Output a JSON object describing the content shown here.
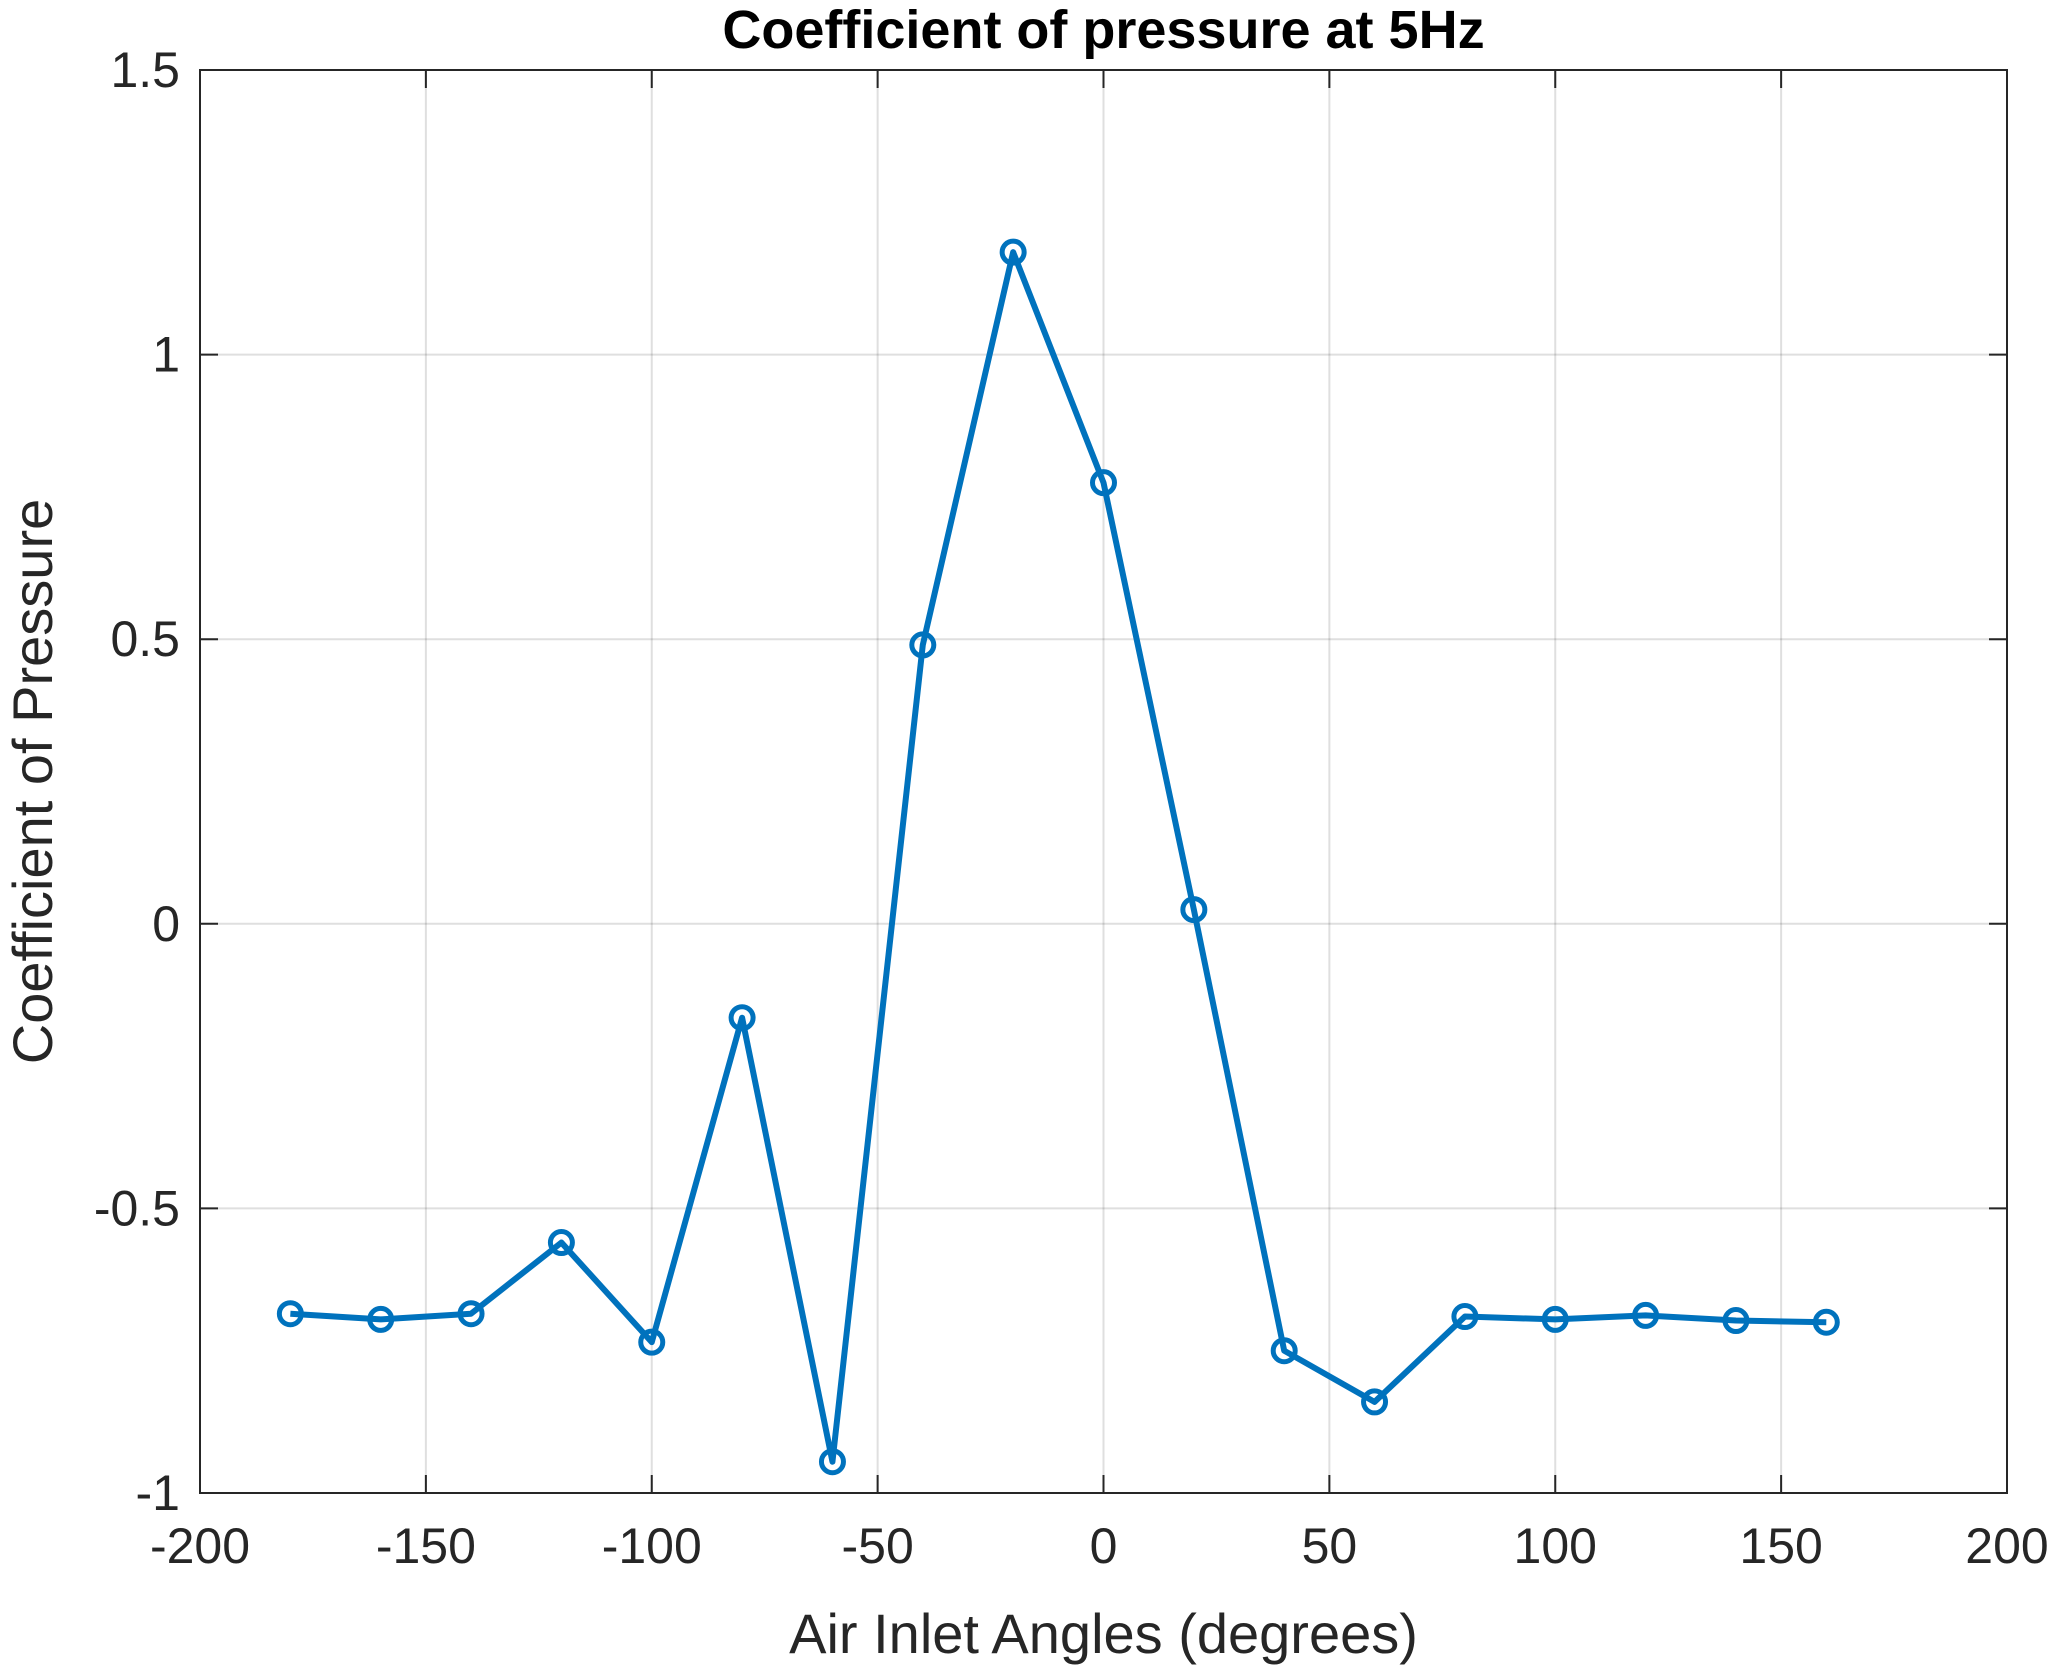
{
  "chart_data": {
    "type": "line",
    "title": "Coefficient of pressure at 5Hz",
    "xlabel": "Air Inlet Angles (degrees)",
    "ylabel": "Coefficient of Pressure",
    "xlim": [
      -200,
      200
    ],
    "ylim": [
      -1,
      1.5
    ],
    "xticks": [
      -200,
      -150,
      -100,
      -50,
      0,
      50,
      100,
      150,
      200
    ],
    "yticks": [
      -1,
      -0.5,
      0,
      0.5,
      1,
      1.5
    ],
    "xtick_labels": [
      "-200",
      "-150",
      "-100",
      "-50",
      "0",
      "50",
      "100",
      "150",
      "200"
    ],
    "ytick_labels": [
      "-1",
      "-0.5",
      "0",
      "0.5",
      "1",
      "1.5"
    ],
    "grid": true,
    "series": [
      {
        "color": "#0072BD",
        "marker": "circle",
        "x": [
          -180,
          -160,
          -140,
          -120,
          -100,
          -80,
          -60,
          -40,
          -20,
          0,
          20,
          40,
          60,
          80,
          100,
          120,
          140,
          160
        ],
        "y": [
          -0.685,
          -0.695,
          -0.685,
          -0.56,
          -0.735,
          -0.165,
          -0.945,
          0.49,
          1.18,
          0.775,
          0.025,
          -0.75,
          -0.84,
          -0.69,
          -0.695,
          -0.688,
          -0.697,
          -0.7
        ]
      }
    ]
  }
}
